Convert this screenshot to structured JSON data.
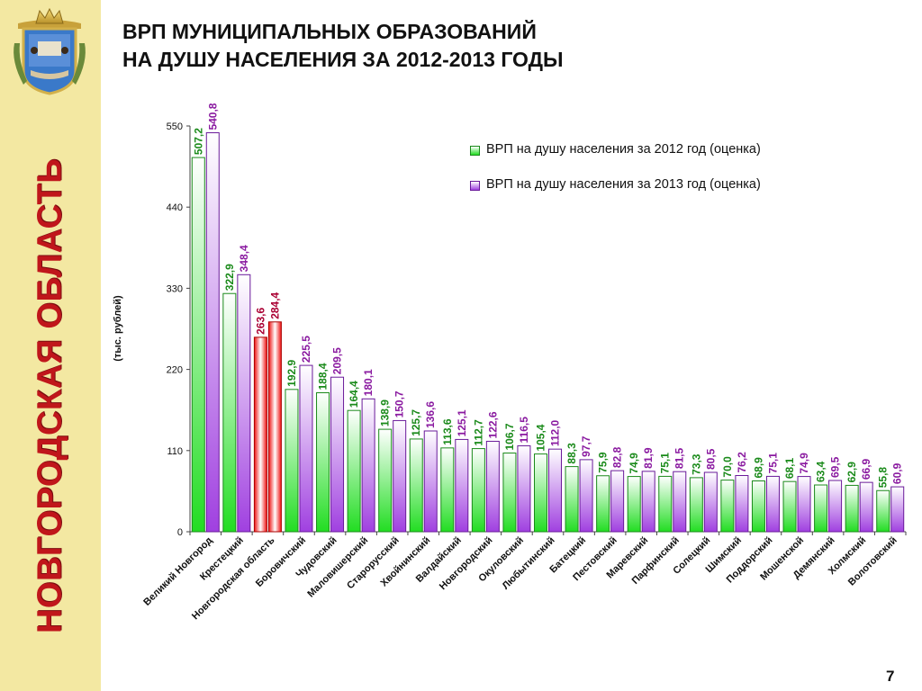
{
  "sidebar": {
    "region_text": "НОВГОРОДСКАЯ ОБЛАСТЬ"
  },
  "slide": {
    "title_line1": "ВРП МУНИЦИПАЛЬНЫХ ОБРАЗОВАНИЙ",
    "title_line2": "НА ДУШУ НАСЕЛЕНИЯ ЗА 2012-2013 ГОДЫ",
    "page_number": "7"
  },
  "colors": {
    "sidebar_bg": "#f3e8a2",
    "region_text": "#c0161b",
    "series_2012": "#22dd22",
    "series_2013": "#a040e0",
    "highlight": "#ee1111",
    "label_2012": "#1a8a1a",
    "label_2013": "#8a1aa0",
    "label_highlight": "#aa0033"
  },
  "chart_data": {
    "type": "bar",
    "ylabel": "(тыс. рублей)",
    "ylim": [
      0,
      550
    ],
    "yticks": [
      0,
      110,
      220,
      330,
      440,
      550
    ],
    "legend_position": "top-right",
    "highlight_category": "Новгородская область",
    "categories": [
      "Великий Новгород",
      "Крестецкий",
      "Новгородская область",
      "Боровичский",
      "Чудовский",
      "Маловишерский",
      "Старорусский",
      "Хвойнинский",
      "Валдайский",
      "Новгородский",
      "Окуловский",
      "Любытинский",
      "Батецкий",
      "Пестовский",
      "Маревский",
      "Парфинский",
      "Солецкий",
      "Шимский",
      "Поддорский",
      "Мошенской",
      "Демянский",
      "Холмский",
      "Волотовский"
    ],
    "series": [
      {
        "name": "ВРП на душу населения за 2012 год (оценка)",
        "values": [
          507.2,
          322.9,
          263.6,
          192.9,
          188.4,
          164.4,
          138.9,
          125.7,
          113.6,
          112.7,
          106.7,
          105.4,
          88.3,
          75.9,
          74.9,
          75.1,
          73.3,
          70.0,
          68.9,
          68.1,
          63.4,
          62.9,
          55.8
        ],
        "labels": [
          "507,2",
          "322,9",
          "263,6",
          "192,9",
          "188,4",
          "164,4",
          "138,9",
          "125,7",
          "113,6",
          "112,7",
          "106,7",
          "105,4",
          "88,3",
          "75,9",
          "74,9",
          "75,1",
          "73,3",
          "70,0",
          "68,9",
          "68,1",
          "63,4",
          "62,9",
          "55,8"
        ]
      },
      {
        "name": "ВРП на душу населения за 2013 год (оценка)",
        "values": [
          540.8,
          348.4,
          284.4,
          225.5,
          209.5,
          180.1,
          150.7,
          136.6,
          125.1,
          122.6,
          116.5,
          112.0,
          97.7,
          82.8,
          81.9,
          81.5,
          80.5,
          76.2,
          75.1,
          74.9,
          69.5,
          66.9,
          60.9
        ],
        "labels": [
          "540,8",
          "348,4",
          "284,4",
          "225,5",
          "209,5",
          "180,1",
          "150,7",
          "136,6",
          "125,1",
          "122,6",
          "116,5",
          "112,0",
          "97,7",
          "82,8",
          "81,9",
          "81,5",
          "80,5",
          "76,2",
          "75,1",
          "74,9",
          "69,5",
          "66,9",
          "60,9"
        ]
      }
    ]
  }
}
